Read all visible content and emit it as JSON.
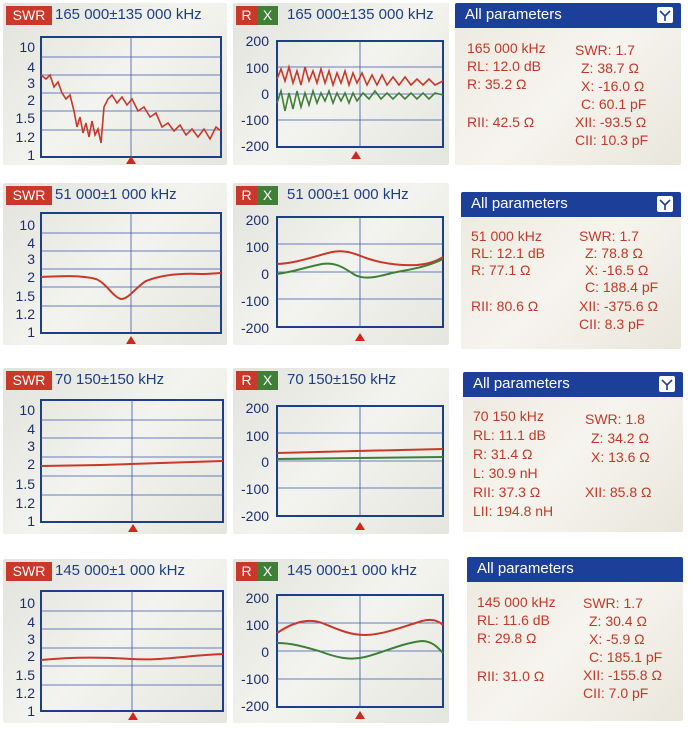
{
  "accent": {
    "swr": "#c93828",
    "x": "#3f7f36",
    "axis": "#1c3f86",
    "header": "#1c3f9a"
  },
  "rows": [
    {
      "swr": {
        "badge": "SWR",
        "freq": "165 000±135 000 kHz",
        "ticks": [
          "10",
          "4",
          "3",
          "2",
          "1.5",
          "1.2",
          "1"
        ]
      },
      "rx": {
        "r_badge": "R",
        "x_badge": "X",
        "freq": "165 000±135 000 kHz",
        "ticks": [
          "200",
          "100",
          "0",
          "-100",
          "-200"
        ]
      },
      "params": {
        "title": "All parameters",
        "icon": "antenna-icon",
        "freq": "165 000 kHz",
        "rl": "RL: 12.0 dB",
        "r": "R: 35.2 Ω",
        "swr": "SWR: 1.7",
        "z": "Z: 38.7 Ω",
        "x": "X: -16.0 Ω",
        "c": "C: 60.1 pF",
        "rll": "RII: 42.5 Ω",
        "xll": "XII: -93.5 Ω",
        "cll": "CII: 10.3 pF"
      }
    },
    {
      "swr": {
        "badge": "SWR",
        "freq": "51 000±1 000 kHz",
        "ticks": [
          "10",
          "4",
          "3",
          "2",
          "1.5",
          "1.2",
          "1"
        ]
      },
      "rx": {
        "r_badge": "R",
        "x_badge": "X",
        "freq": "51 000±1 000 kHz",
        "ticks": [
          "200",
          "100",
          "0",
          "-100",
          "-200"
        ]
      },
      "params": {
        "title": "All parameters",
        "icon": "antenna-icon",
        "freq": "51 000 kHz",
        "rl": "RL: 12.1 dB",
        "r": "R: 77.1 Ω",
        "swr": "SWR: 1.7",
        "z": "Z: 78.8 Ω",
        "x": "X: -16.5 Ω",
        "c": "C: 188.4 pF",
        "rll": "RII: 80.6 Ω",
        "xll": "XII: -375.6 Ω",
        "cll": "CII: 8.3 pF"
      }
    },
    {
      "swr": {
        "badge": "SWR",
        "freq": "70 150±150 kHz",
        "ticks": [
          "10",
          "4",
          "3",
          "2",
          "1.5",
          "1.2",
          "1"
        ]
      },
      "rx": {
        "r_badge": "R",
        "x_badge": "X",
        "freq": "70 150±150 kHz",
        "ticks": [
          "200",
          "100",
          "0",
          "-100",
          "-200"
        ]
      },
      "params": {
        "title": "All parameters",
        "icon": "antenna-icon",
        "freq": "70 150 kHz",
        "rl": "RL: 11.1 dB",
        "r": "R: 31.4 Ω",
        "l": "L: 30.9 nH",
        "swr": "SWR: 1.8",
        "z": "Z: 34.2 Ω",
        "x": "X: 13.6 Ω",
        "rll": "RII: 37.3 Ω",
        "xll": "XII: 85.8 Ω",
        "lll": "LII: 194.8 nH"
      }
    },
    {
      "swr": {
        "badge": "SWR",
        "freq": "145 000±1 000 kHz",
        "ticks": [
          "10",
          "4",
          "3",
          "2",
          "1.5",
          "1.2",
          "1"
        ]
      },
      "rx": {
        "r_badge": "R",
        "x_badge": "X",
        "freq": "145 000±1 000 kHz",
        "ticks": [
          "200",
          "100",
          "0",
          "-100",
          "-200"
        ]
      },
      "params": {
        "title": "All parameters",
        "icon": "antenna-icon",
        "freq": "145 000 kHz",
        "rl": "RL: 11.6 dB",
        "r": "R: 29.8 Ω",
        "swr": "SWR: 1.7",
        "z": "Z: 30.4 Ω",
        "x": "X: -5.9 Ω",
        "c": "C: 185.1 pF",
        "rll": "RII: 31.0 Ω",
        "xll": "XII: -155.8 Ω",
        "cll": "CII: 7.0 pF"
      }
    }
  ]
}
